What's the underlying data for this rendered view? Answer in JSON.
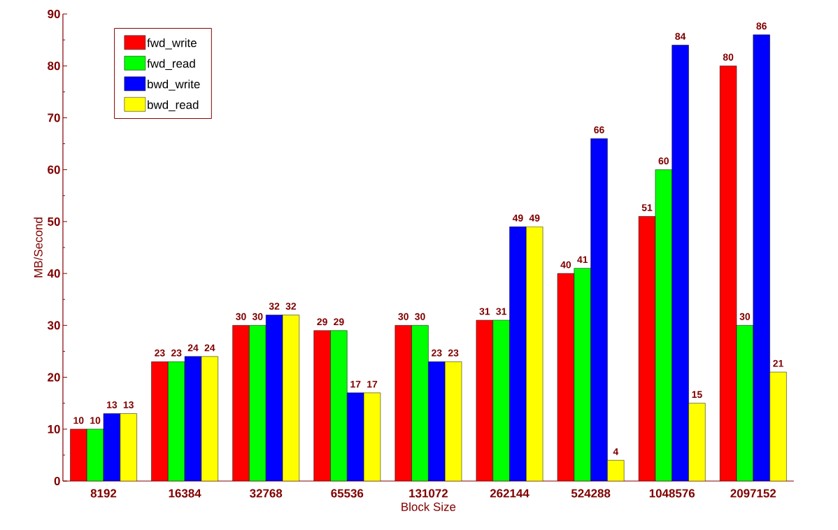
{
  "chart_data": {
    "type": "bar",
    "xlabel": "Block Size",
    "ylabel": "MB/Second",
    "categories": [
      "8192",
      "16384",
      "32768",
      "65536",
      "131072",
      "262144",
      "524288",
      "1048576",
      "2097152"
    ],
    "series": [
      {
        "name": "fwd_write",
        "color": "#ff0000",
        "values": [
          10,
          23,
          30,
          29,
          30,
          31,
          40,
          51,
          80
        ]
      },
      {
        "name": "fwd_read",
        "color": "#00ff00",
        "values": [
          10,
          23,
          30,
          29,
          30,
          31,
          41,
          60,
          30
        ]
      },
      {
        "name": "bwd_write",
        "color": "#0000ff",
        "values": [
          13,
          24,
          32,
          17,
          23,
          49,
          66,
          84,
          86
        ]
      },
      {
        "name": "bwd_read",
        "color": "#ffff00",
        "values": [
          13,
          24,
          32,
          17,
          23,
          49,
          4,
          15,
          21
        ]
      }
    ],
    "ylim": [
      0,
      90
    ],
    "yticks": [
      0,
      10,
      20,
      30,
      40,
      50,
      60,
      70,
      80,
      90
    ],
    "data_labels": true,
    "legend": "top left",
    "grid": false
  }
}
